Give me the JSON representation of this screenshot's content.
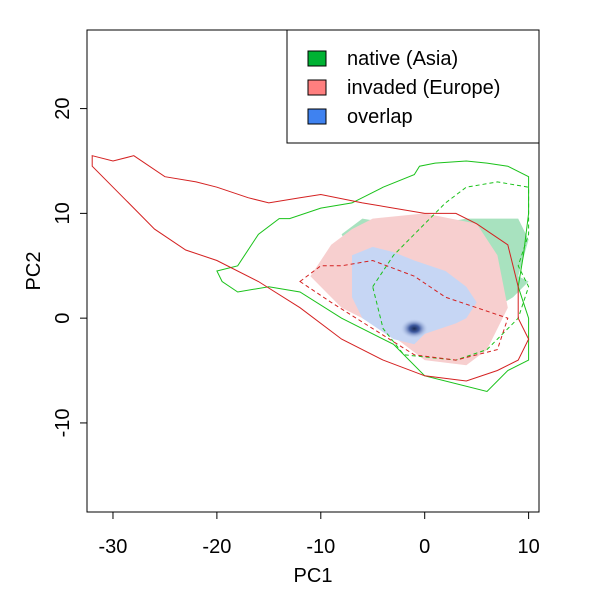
{
  "chart_data": {
    "type": "heatmap",
    "title": "",
    "xlabel": "PC1",
    "ylabel": "PC2",
    "xlim": [
      -32.5,
      11
    ],
    "ylim": [
      -18.5,
      27.5
    ],
    "xticks": [
      -30,
      -20,
      -10,
      0,
      10
    ],
    "yticks": [
      -10,
      0,
      10,
      20
    ],
    "xtick_labels": [
      "-30",
      "-20",
      "-10",
      "0",
      "10"
    ],
    "ytick_labels": [
      "-10",
      "0",
      "10",
      "20"
    ],
    "legend": {
      "position": "top-right",
      "entries": [
        {
          "label": "native (Asia)",
          "color": "#00b233"
        },
        {
          "label": "invaded (Europe)",
          "color": "#ff7f7f"
        },
        {
          "label": "overlap",
          "color": "#3f82f0"
        }
      ]
    },
    "colors": {
      "native_fill": "#a8e2bf",
      "invaded_fill": "#f7cfcf",
      "overlap_fill": "#c6d6f4",
      "native_line": "#1ac21a",
      "invaded_line": "#d42121",
      "density_peak": "#1a2b55"
    },
    "series": [
      {
        "name": "native (Asia)",
        "region": [
          [
            -8,
            8
          ],
          [
            -6,
            9.5
          ],
          [
            -3,
            9
          ],
          [
            -1,
            8.6
          ],
          [
            4,
            9.5
          ],
          [
            9,
            9.5
          ],
          [
            10,
            7.5
          ],
          [
            9,
            4
          ],
          [
            10,
            3.5
          ],
          [
            8.5,
            2
          ],
          [
            6,
            0.5
          ],
          [
            4,
            1
          ],
          [
            2,
            4.5
          ],
          [
            -3,
            5
          ],
          [
            -7,
            6
          ]
        ],
        "contour_outer": [
          [
            -20,
            4.5
          ],
          [
            -18,
            5
          ],
          [
            -16,
            8
          ],
          [
            -14,
            9.5
          ],
          [
            -13,
            9.5
          ],
          [
            -10,
            10.5
          ],
          [
            -7,
            11
          ],
          [
            -4,
            12.5
          ],
          [
            -1,
            13.7
          ],
          [
            -0.5,
            14.5
          ],
          [
            1,
            14.8
          ],
          [
            4,
            15
          ],
          [
            6,
            14.8
          ],
          [
            8,
            14.5
          ],
          [
            10,
            13.5
          ],
          [
            10,
            10
          ],
          [
            9.5,
            6
          ],
          [
            9,
            3
          ],
          [
            10,
            0
          ],
          [
            10,
            -4
          ],
          [
            8,
            -5
          ],
          [
            6,
            -7
          ],
          [
            0,
            -5.5
          ],
          [
            -3,
            -2.5
          ],
          [
            -8,
            0
          ],
          [
            -12,
            2.5
          ],
          [
            -15,
            3
          ],
          [
            -18,
            2.5
          ],
          [
            -19.5,
            3.5
          ],
          [
            -20,
            4.5
          ]
        ],
        "contour_inner": [
          [
            -5,
            3
          ],
          [
            -3,
            6
          ],
          [
            0,
            9
          ],
          [
            2,
            11
          ],
          [
            4,
            12.5
          ],
          [
            7,
            13
          ],
          [
            10,
            12.5
          ],
          [
            10,
            8
          ],
          [
            9,
            5
          ],
          [
            10,
            3
          ],
          [
            9,
            0
          ],
          [
            6,
            -3
          ],
          [
            3,
            -4
          ],
          [
            -2,
            -3.5
          ],
          [
            -4,
            -1
          ],
          [
            -5,
            3
          ]
        ]
      },
      {
        "name": "invaded (Europe)",
        "region": [
          [
            -11,
            4
          ],
          [
            -9,
            7
          ],
          [
            -7,
            8.5
          ],
          [
            -5,
            9.5
          ],
          [
            0,
            10
          ],
          [
            5,
            9
          ],
          [
            7,
            6
          ],
          [
            8,
            1
          ],
          [
            6,
            -3
          ],
          [
            4,
            -4.5
          ],
          [
            0,
            -4
          ],
          [
            -4,
            -1
          ],
          [
            -8,
            1
          ]
        ],
        "contour_outer": [
          [
            -32,
            15.5
          ],
          [
            -30,
            15
          ],
          [
            -28,
            15.5
          ],
          [
            -25,
            13.5
          ],
          [
            -22,
            13
          ],
          [
            -20,
            12.5
          ],
          [
            -17,
            11.5
          ],
          [
            -15,
            11
          ],
          [
            -12,
            11.5
          ],
          [
            -10,
            11.8
          ],
          [
            -6,
            11
          ],
          [
            -3,
            10.5
          ],
          [
            0,
            10
          ],
          [
            3,
            10
          ],
          [
            5,
            9
          ],
          [
            8,
            7
          ],
          [
            9,
            3
          ],
          [
            9,
            0
          ],
          [
            10,
            -2
          ],
          [
            9,
            -4
          ],
          [
            7,
            -5
          ],
          [
            4,
            -6
          ],
          [
            0,
            -5.5
          ],
          [
            -4,
            -4
          ],
          [
            -8,
            -2
          ],
          [
            -12,
            1
          ],
          [
            -16,
            3.5
          ],
          [
            -20,
            5.5
          ],
          [
            -23,
            6.5
          ],
          [
            -26,
            8.5
          ],
          [
            -28,
            10.5
          ],
          [
            -30,
            12.5
          ],
          [
            -32,
            14.5
          ],
          [
            -32,
            15.5
          ]
        ],
        "contour_inner": [
          [
            -12,
            3.5
          ],
          [
            -10,
            5
          ],
          [
            -8,
            5
          ],
          [
            -5,
            5.5
          ],
          [
            -1,
            4
          ],
          [
            2,
            2
          ],
          [
            5,
            1
          ],
          [
            8,
            0
          ],
          [
            7,
            -3
          ],
          [
            3,
            -4
          ],
          [
            -1,
            -3.5
          ],
          [
            -5,
            -1
          ],
          [
            -9,
            1.5
          ],
          [
            -12,
            3.5
          ]
        ]
      },
      {
        "name": "overlap",
        "region": [
          [
            -7,
            6
          ],
          [
            -5,
            6.8
          ],
          [
            -3,
            6.3
          ],
          [
            -1,
            5.5
          ],
          [
            2,
            4.5
          ],
          [
            4,
            3
          ],
          [
            5,
            1.5
          ],
          [
            4,
            0
          ],
          [
            3,
            -0.5
          ],
          [
            0,
            -1.5
          ],
          [
            -1,
            -2.5
          ],
          [
            -3,
            -2
          ],
          [
            -6,
            0
          ],
          [
            -7,
            2
          ]
        ],
        "peak": [
          -1,
          -1
        ]
      }
    ]
  }
}
